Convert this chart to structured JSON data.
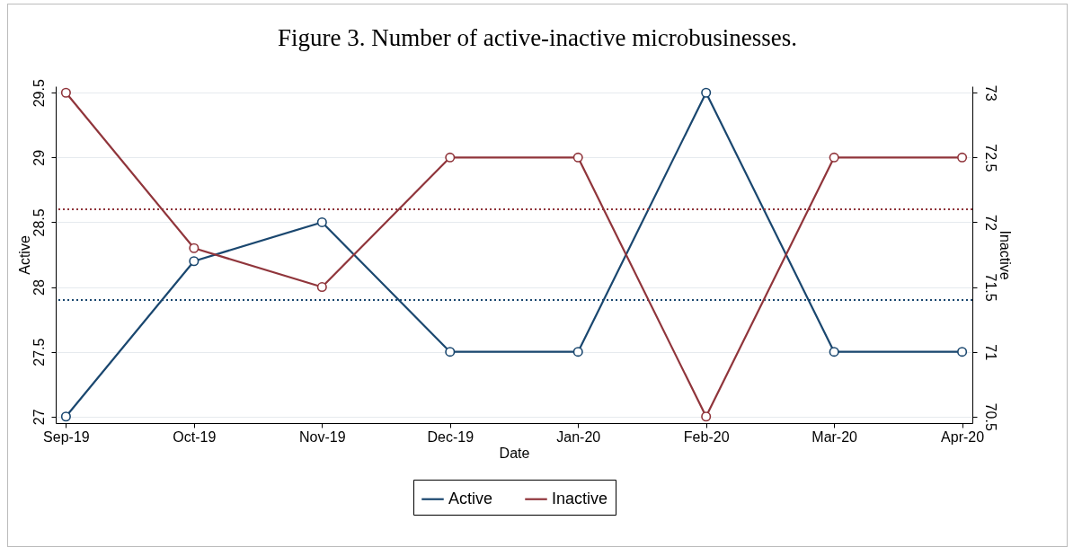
{
  "chart_data": {
    "type": "line",
    "title": "Figure 3. Number of active-inactive microbusinesses.",
    "xlabel": "Date",
    "ylabel": "Active",
    "y2label": "Inactive",
    "categories": [
      "Sep-19",
      "Oct-19",
      "Nov-19",
      "Dec-19",
      "Jan-20",
      "Feb-20",
      "Mar-20",
      "Apr-20"
    ],
    "series": [
      {
        "name": "Active",
        "color": "#1a476f",
        "values": [
          27,
          28.2,
          28.5,
          27.5,
          27.5,
          29.5,
          27.5,
          27.5
        ]
      },
      {
        "name": "Inactive",
        "color": "#90353b",
        "axis": "y2",
        "values": [
          73,
          71.8,
          71.5,
          72.5,
          72.5,
          70.5,
          72.5,
          72.5
        ]
      }
    ],
    "ylim": [
      26.95,
      29.55
    ],
    "yticks": [
      27,
      27.5,
      28,
      28.5,
      29,
      29.5
    ],
    "y2lim": [
      70.45,
      73.05
    ],
    "y2ticks": [
      70.5,
      71,
      71.5,
      72,
      72.5,
      73
    ],
    "ref_lines": [
      {
        "axis": "y",
        "value": 27.9,
        "color": "#1a476f",
        "line_style": "dotted"
      },
      {
        "axis": "y2",
        "value": 72.1,
        "color": "#90353b",
        "line_style": "dotted"
      }
    ],
    "grid": "y",
    "legend": "bottom",
    "marker": "circle",
    "line_style": "solid"
  }
}
